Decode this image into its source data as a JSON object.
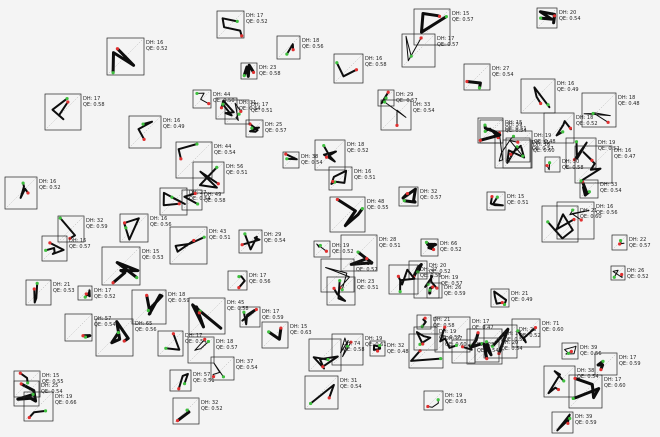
{
  "view": {
    "background": "#f4f4f4",
    "box_stroke": "#222222",
    "path_stroke": "#0d0d0d",
    "start_color": "#3fbf3f",
    "end_color": "#e03030"
  },
  "glyphs": [
    {
      "dh": "19",
      "qe": "0.61"
    },
    {
      "dh": "19",
      "qe": "0.57"
    },
    {
      "dh": "25",
      "qe": "0.54"
    },
    {
      "dh": "19",
      "qe": "0.52"
    },
    {
      "dh": "22",
      "qe": "0.57"
    },
    {
      "dh": "33",
      "qe": "0.54"
    },
    {
      "dh": "19",
      "qe": "0.48"
    },
    {
      "dh": "16",
      "qe": "0.60"
    },
    {
      "dh": "37",
      "qe": "0.54"
    },
    {
      "dh": "19",
      "qe": "0.63"
    },
    {
      "dh": "18",
      "qe": "0.59"
    },
    {
      "dh": "16",
      "qe": "0.52"
    },
    {
      "dh": "23",
      "qe": "0.58"
    },
    {
      "dh": "15",
      "qe": "0.57"
    },
    {
      "dh": "20",
      "qe": "0.52"
    },
    {
      "dh": "25",
      "qe": "0.57"
    },
    {
      "dh": "27",
      "qe": "0.60"
    },
    {
      "dh": "29",
      "qe": "0.57"
    },
    {
      "dh": "56",
      "qe": "0.51"
    },
    {
      "dh": "43",
      "qe": "0.51"
    },
    {
      "dh": "17",
      "qe": "0.54"
    },
    {
      "dh": "21",
      "qe": "0.49"
    },
    {
      "dh": "33",
      "qe": "0.54"
    },
    {
      "dh": "27",
      "qe": "0.56"
    },
    {
      "dh": "38",
      "qe": "0.54"
    },
    {
      "dh": "18",
      "qe": "0.52"
    },
    {
      "dh": "19",
      "qe": "0.52"
    },
    {
      "dh": "57",
      "qe": "0.51"
    },
    {
      "dh": "23",
      "qe": "0.52"
    },
    {
      "dh": "16",
      "qe": "0.49"
    },
    {
      "dh": "15",
      "qe": "0.55"
    },
    {
      "dh": "65",
      "qe": "0.56"
    },
    {
      "dh": "28",
      "qe": "0.51"
    },
    {
      "dh": "18",
      "qe": "0.57"
    },
    {
      "dh": "21",
      "qe": "0.53"
    },
    {
      "dh": "16",
      "qe": "0.52"
    },
    {
      "dh": "35",
      "qe": "0.57"
    },
    {
      "dh": "32",
      "qe": "0.59"
    },
    {
      "dh": "25",
      "qe": "0.54"
    },
    {
      "dh": "17",
      "qe": "0.60"
    },
    {
      "dh": "20",
      "qe": "0.54"
    },
    {
      "dh": "21",
      "qe": "0.60"
    },
    {
      "dh": "23",
      "qe": "0.51"
    },
    {
      "dh": "21",
      "qe": "0.58"
    },
    {
      "dh": "48",
      "qe": "0.55"
    },
    {
      "dh": "18",
      "qe": "0.48"
    },
    {
      "dh": "15",
      "qe": "0.51"
    },
    {
      "dh": "45",
      "qe": "0.58"
    },
    {
      "dh": "30",
      "qe": "0.58"
    },
    {
      "dh": "26",
      "qe": "0.59"
    },
    {
      "dh": "18",
      "qe": "0.56"
    },
    {
      "dh": "17",
      "qe": "0.51"
    },
    {
      "dh": "31",
      "qe": "0.54"
    },
    {
      "dh": "29",
      "qe": "0.54"
    },
    {
      "dh": "17",
      "qe": "0.52"
    },
    {
      "dh": "16",
      "qe": "0.57"
    },
    {
      "dh": "17",
      "qe": "0.59"
    },
    {
      "dh": "32",
      "qe": "0.52"
    },
    {
      "dh": "17",
      "qe": "0.47"
    },
    {
      "dh": "20",
      "qe": "0.54"
    },
    {
      "dh": "15",
      "qe": "0.53"
    },
    {
      "dh": "17",
      "qe": "0.52"
    },
    {
      "dh": "16",
      "qe": "0.51"
    },
    {
      "dh": "16",
      "qe": "0.56"
    },
    {
      "dh": "27",
      "qe": "0.54"
    },
    {
      "dh": "17",
      "qe": "0.57"
    },
    {
      "dh": "71",
      "qe": "0.60"
    },
    {
      "dh": "49",
      "qe": "0.58"
    },
    {
      "dh": "57",
      "qe": "0.54"
    },
    {
      "dh": "59",
      "qe": "0.54"
    },
    {
      "dh": "44",
      "qe": "0.50"
    },
    {
      "dh": "15",
      "qe": "0.63"
    },
    {
      "dh": "32",
      "qe": "0.57"
    },
    {
      "dh": "32",
      "qe": "0.48"
    },
    {
      "dh": "17",
      "qe": "0.56"
    },
    {
      "dh": "31",
      "qe": "0.54"
    },
    {
      "dh": "17",
      "qe": "0.59"
    },
    {
      "dh": "16",
      "qe": "0.49"
    },
    {
      "dh": "15",
      "qe": "0.51"
    },
    {
      "dh": "16",
      "qe": "0.47"
    },
    {
      "dh": "39",
      "qe": "0.59"
    },
    {
      "dh": "27",
      "qe": "0.54"
    },
    {
      "dh": "39",
      "qe": "0.56"
    },
    {
      "dh": "18",
      "qe": "0.52"
    },
    {
      "dh": "66",
      "qe": "0.52"
    },
    {
      "dh": "16",
      "qe": "0.58"
    },
    {
      "dh": "17",
      "qe": "0.58"
    },
    {
      "dh": "74",
      "qe": "0.58"
    },
    {
      "dh": "31",
      "qe": "0.57"
    },
    {
      "dh": "38",
      "qe": "0.54"
    },
    {
      "dh": "44",
      "qe": "0.54"
    },
    {
      "dh": "26",
      "qe": "0.52"
    },
    {
      "dh": "16",
      "qe": "0.56"
    },
    {
      "dh": "19",
      "qe": "0.66"
    },
    {
      "dh": "17",
      "qe": "0.52"
    },
    {
      "dh": "19",
      "qe": "0.57"
    }
  ]
}
